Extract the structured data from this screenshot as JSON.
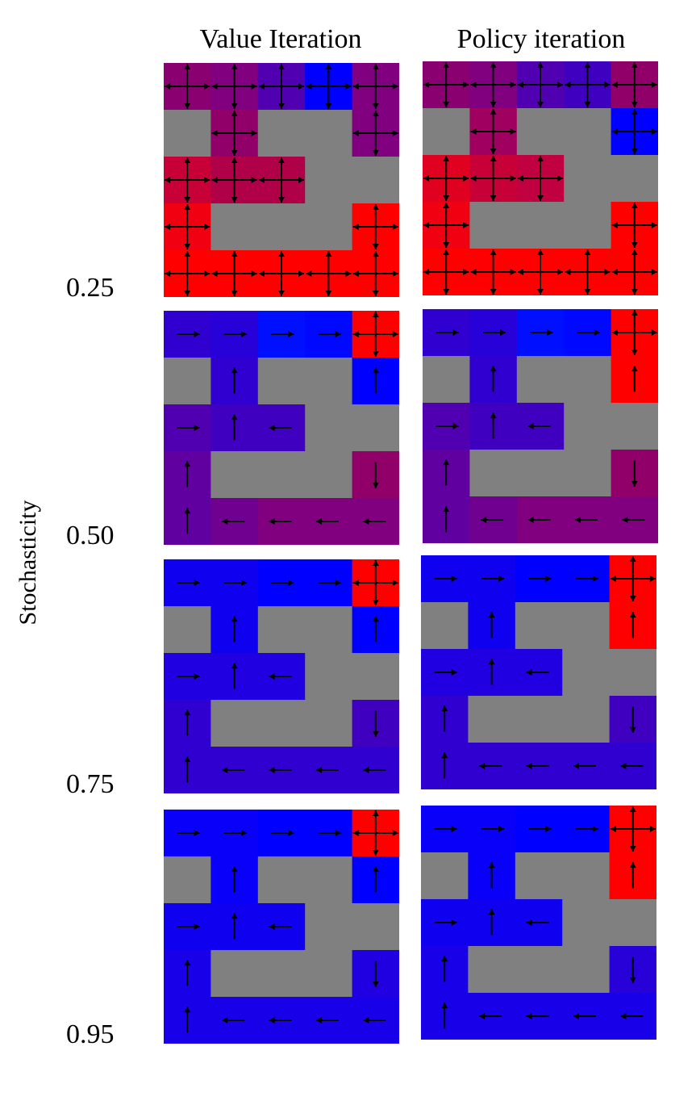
{
  "figure": {
    "column_titles": [
      "Value Iteration",
      "Policy iteration"
    ],
    "row_labels": [
      "0.25",
      "0.50",
      "0.75",
      "0.95"
    ],
    "y_axis_title": "Stochasticity"
  },
  "colors": {
    "wall": "#808080",
    "value_low": "#0000ff",
    "value_high": "#ff0000",
    "arrow": "#000000"
  },
  "grid": {
    "rows": 5,
    "cols": 5,
    "walls": [
      [
        1,
        0
      ],
      [
        1,
        2
      ],
      [
        1,
        3
      ],
      [
        2,
        3
      ],
      [
        2,
        4
      ],
      [
        3,
        1
      ],
      [
        3,
        2
      ],
      [
        3,
        3
      ]
    ]
  },
  "panels": [
    {
      "method": "Value Iteration",
      "stochasticity": "0.25",
      "cell_colors": [
        [
          "#8b0070",
          "#800080",
          "#5000b0",
          "#0000ff",
          "#800080"
        ],
        [
          null,
          "#900068",
          null,
          null,
          "#800080"
        ],
        [
          "#c80038",
          "#b00048",
          "#b00048",
          null,
          null
        ],
        [
          "#f00010",
          null,
          null,
          null,
          "#ff0000"
        ],
        [
          "#ff0000",
          "#ff0000",
          "#ff0000",
          "#ff0000",
          "#ff0000"
        ]
      ],
      "actions": [
        [
          "all",
          "all",
          "all",
          "all",
          "all"
        ],
        [
          "",
          "all",
          "",
          "",
          "all"
        ],
        [
          "all",
          "all",
          "all",
          "",
          ""
        ],
        [
          "all",
          "",
          "",
          "",
          "all"
        ],
        [
          "all",
          "all",
          "all",
          "all",
          "all"
        ]
      ]
    },
    {
      "method": "Policy iteration",
      "stochasticity": "0.25",
      "cell_colors": [
        [
          "#8b0070",
          "#800080",
          "#5000b0",
          "#4000c0",
          "#900068"
        ],
        [
          null,
          "#a00060",
          null,
          null,
          "#0000ff"
        ],
        [
          "#e00020",
          "#c80038",
          "#c00040",
          null,
          null
        ],
        [
          "#f00010",
          null,
          null,
          null,
          "#ff0000"
        ],
        [
          "#ff0000",
          "#ff0000",
          "#ff0000",
          "#ff0000",
          "#ff0000"
        ]
      ],
      "actions": [
        [
          "all",
          "all",
          "all",
          "all",
          "all"
        ],
        [
          "",
          "all",
          "",
          "",
          "all"
        ],
        [
          "all",
          "all",
          "all",
          "",
          ""
        ],
        [
          "all",
          "",
          "",
          "",
          "all"
        ],
        [
          "all",
          "all",
          "all",
          "all",
          "all"
        ]
      ]
    },
    {
      "method": "Value Iteration",
      "stochasticity": "0.50",
      "cell_colors": [
        [
          "#3000d0",
          "#2800d8",
          "#0010ff",
          "#0008ff",
          "#ff0000"
        ],
        [
          null,
          "#3000d0",
          null,
          null,
          "#0000ff"
        ],
        [
          "#5000b0",
          "#4000c0",
          "#4000c0",
          null,
          null
        ],
        [
          "#6000a0",
          null,
          null,
          null,
          "#900068"
        ],
        [
          "#6000a0",
          "#700090",
          "#800080",
          "#800080",
          "#800080"
        ]
      ],
      "actions": [
        [
          "right",
          "right",
          "right",
          "right",
          "all"
        ],
        [
          "",
          "up",
          "",
          "",
          "up"
        ],
        [
          "right",
          "up",
          "left",
          "",
          ""
        ],
        [
          "up",
          "",
          "",
          "",
          "down"
        ],
        [
          "up",
          "left",
          "left",
          "left",
          "left"
        ]
      ]
    },
    {
      "method": "Policy iteration",
      "stochasticity": "0.50",
      "cell_colors": [
        [
          "#3000d0",
          "#2800d8",
          "#0010ff",
          "#0008ff",
          "#ff0000"
        ],
        [
          null,
          "#3000d0",
          null,
          null,
          "#ff0000"
        ],
        [
          "#5000b0",
          "#4000c0",
          "#4000c0",
          null,
          null
        ],
        [
          "#6000a0",
          null,
          null,
          null,
          "#900068"
        ],
        [
          "#6000a0",
          "#700090",
          "#800080",
          "#800080",
          "#800080"
        ]
      ],
      "actions": [
        [
          "right",
          "right",
          "right",
          "right",
          "all"
        ],
        [
          "",
          "up",
          "",
          "",
          "up"
        ],
        [
          "right",
          "up",
          "left",
          "",
          ""
        ],
        [
          "up",
          "",
          "",
          "",
          "down"
        ],
        [
          "up",
          "left",
          "left",
          "left",
          "left"
        ]
      ]
    },
    {
      "method": "Value Iteration",
      "stochasticity": "0.75",
      "cell_colors": [
        [
          "#1000f0",
          "#1000f0",
          "#0000ff",
          "#0000ff",
          "#ff0000"
        ],
        [
          null,
          "#1000f0",
          null,
          null,
          "#0000ff"
        ],
        [
          "#2000e0",
          "#2000e0",
          "#2000e0",
          null,
          null
        ],
        [
          "#3000d0",
          null,
          null,
          null,
          "#4000c0"
        ],
        [
          "#3000d0",
          "#3000d0",
          "#3000d0",
          "#3000d0",
          "#3000d0"
        ]
      ],
      "actions": [
        [
          "right",
          "right",
          "right",
          "right",
          "all"
        ],
        [
          "",
          "up",
          "",
          "",
          "up"
        ],
        [
          "right",
          "up",
          "left",
          "",
          ""
        ],
        [
          "up",
          "",
          "",
          "",
          "down"
        ],
        [
          "up",
          "left",
          "left",
          "left",
          "left"
        ]
      ]
    },
    {
      "method": "Policy iteration",
      "stochasticity": "0.75",
      "cell_colors": [
        [
          "#1000f0",
          "#1000f0",
          "#0000ff",
          "#0000ff",
          "#ff0000"
        ],
        [
          null,
          "#1000f0",
          null,
          null,
          "#ff0000"
        ],
        [
          "#2000e0",
          "#2000e0",
          "#2000e0",
          null,
          null
        ],
        [
          "#3000d0",
          null,
          null,
          null,
          "#4000c0"
        ],
        [
          "#3000d0",
          "#3000d0",
          "#3000d0",
          "#3000d0",
          "#3000d0"
        ]
      ],
      "actions": [
        [
          "right",
          "right",
          "right",
          "right",
          "all"
        ],
        [
          "",
          "up",
          "",
          "",
          "up"
        ],
        [
          "right",
          "up",
          "left",
          "",
          ""
        ],
        [
          "up",
          "",
          "",
          "",
          "down"
        ],
        [
          "up",
          "left",
          "left",
          "left",
          "left"
        ]
      ]
    },
    {
      "method": "Value Iteration",
      "stochasticity": "0.95",
      "cell_colors": [
        [
          "#0800f8",
          "#0800f8",
          "#0000ff",
          "#0000ff",
          "#ff0000"
        ],
        [
          null,
          "#0800f8",
          null,
          null,
          "#0000ff"
        ],
        [
          "#1000f0",
          "#1000f0",
          "#1000f0",
          null,
          null
        ],
        [
          "#1800e8",
          null,
          null,
          null,
          "#2000e0"
        ],
        [
          "#1800e8",
          "#1800e8",
          "#1800e8",
          "#1800e8",
          "#1800e8"
        ]
      ],
      "actions": [
        [
          "right",
          "right",
          "right",
          "right",
          "all"
        ],
        [
          "",
          "up",
          "",
          "",
          "up"
        ],
        [
          "right",
          "up",
          "left",
          "",
          ""
        ],
        [
          "up",
          "",
          "",
          "",
          "down"
        ],
        [
          "up",
          "left",
          "left",
          "left",
          "left"
        ]
      ]
    },
    {
      "method": "Policy iteration",
      "stochasticity": "0.95",
      "cell_colors": [
        [
          "#0800f8",
          "#0800f8",
          "#0000ff",
          "#0000ff",
          "#ff0000"
        ],
        [
          null,
          "#0800f8",
          null,
          null,
          "#ff0000"
        ],
        [
          "#1000f0",
          "#1000f0",
          "#1000f0",
          null,
          null
        ],
        [
          "#1800e8",
          null,
          null,
          null,
          "#2800d8"
        ],
        [
          "#1800e8",
          "#1800e8",
          "#1800e8",
          "#1800e8",
          "#1800e8"
        ]
      ],
      "actions": [
        [
          "right",
          "right",
          "right",
          "right",
          "all"
        ],
        [
          "",
          "up",
          "",
          "",
          "up"
        ],
        [
          "right",
          "up",
          "left",
          "",
          ""
        ],
        [
          "up",
          "",
          "",
          "",
          "down"
        ],
        [
          "up",
          "left",
          "left",
          "left",
          "left"
        ]
      ]
    }
  ]
}
